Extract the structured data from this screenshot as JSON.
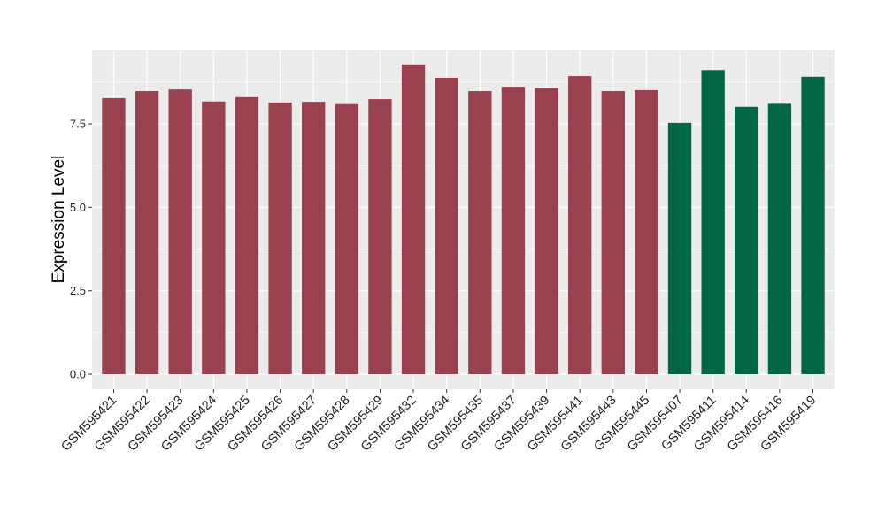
{
  "chart_data": {
    "type": "bar",
    "title": "",
    "xlabel": "",
    "ylabel": "Expression Level",
    "ylim": [
      -0.45,
      9.7
    ],
    "yticks": [
      0.0,
      2.5,
      5.0,
      7.5
    ],
    "ytick_labels": [
      "0.0",
      "2.5",
      "5.0",
      "7.5"
    ],
    "grid": true,
    "categories": [
      "GSM595421",
      "GSM595422",
      "GSM595423",
      "GSM595424",
      "GSM595425",
      "GSM595426",
      "GSM595427",
      "GSM595428",
      "GSM595429",
      "GSM595432",
      "GSM595434",
      "GSM595435",
      "GSM595437",
      "GSM595439",
      "GSM595441",
      "GSM595443",
      "GSM595445",
      "GSM595407",
      "GSM595411",
      "GSM595414",
      "GSM595416",
      "GSM595419"
    ],
    "values": [
      8.27,
      8.48,
      8.53,
      8.17,
      8.3,
      8.14,
      8.16,
      8.09,
      8.24,
      9.28,
      8.88,
      8.48,
      8.61,
      8.57,
      8.93,
      8.48,
      8.51,
      7.53,
      9.11,
      8.01,
      8.1,
      8.91
    ],
    "groups": [
      "group1",
      "group1",
      "group1",
      "group1",
      "group1",
      "group1",
      "group1",
      "group1",
      "group1",
      "group1",
      "group1",
      "group1",
      "group1",
      "group1",
      "group1",
      "group1",
      "group1",
      "group2",
      "group2",
      "group2",
      "group2",
      "group2"
    ],
    "colors": {
      "group1": "#9a4150",
      "group2": "#026844",
      "panel_background": "#ebebeb",
      "grid": "#ffffff"
    }
  }
}
